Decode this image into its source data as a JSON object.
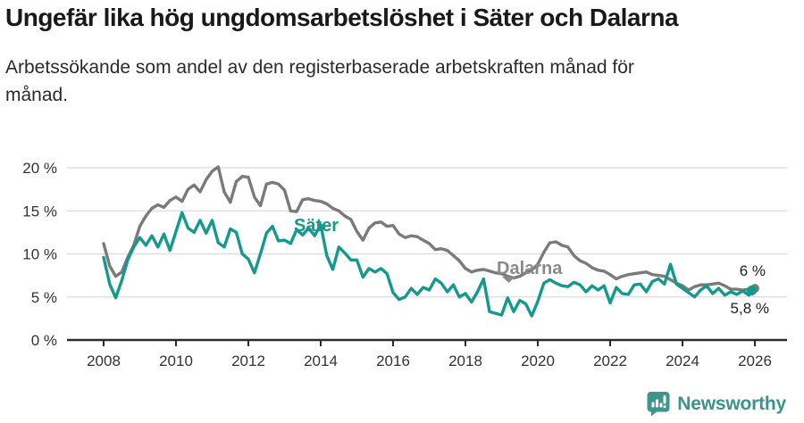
{
  "header": {
    "title": "Ungefär lika hög ungdomsarbetslöshet i Säter och Dalarna",
    "subtitle_line1": "Arbetssökande som andel av den registerbaserade arbetskraften månad för",
    "subtitle_line2": "månad."
  },
  "footer": {
    "brand": "Newsworthy"
  },
  "colors": {
    "sater_line": "#149a8d",
    "dalarna_line": "#7a7a7a",
    "dalarna_label": "#8a8a8a",
    "axis": "#2b2b2b",
    "gridline": "#dbdbdb",
    "brand_teal": "#3f948c"
  },
  "chart_data": {
    "type": "line",
    "title": "Ungefär lika hög ungdomsarbetslöshet i Säter och Dalarna",
    "subtitle": "Arbetssökande som andel av den registerbaserade arbetskraften månad för månad.",
    "unit": "%",
    "x_start": 2008,
    "x_step_months": 2,
    "xlim": [
      2008,
      2026.2
    ],
    "ylim": [
      0,
      21
    ],
    "grid": "horizontal",
    "x_ticks": [
      "2008",
      "2010",
      "2012",
      "2014",
      "2016",
      "2018",
      "2020",
      "2022",
      "2024",
      "2026"
    ],
    "y_ticks": [
      {
        "value": 0,
        "label": "0 %"
      },
      {
        "value": 5,
        "label": "5 %"
      },
      {
        "value": 10,
        "label": "10 %"
      },
      {
        "value": 15,
        "label": "15 %"
      },
      {
        "value": 20,
        "label": "20 %"
      }
    ],
    "series": [
      {
        "name": "Dalarna",
        "end_label": "6 %",
        "end_value": 6.0,
        "values": [
          11.2,
          8.6,
          7.4,
          7.9,
          9.6,
          11.0,
          13.2,
          14.4,
          15.3,
          15.7,
          15.4,
          16.2,
          16.6,
          16.1,
          17.5,
          18.0,
          17.2,
          18.6,
          19.6,
          20.1,
          17.2,
          16.0,
          18.4,
          19.0,
          18.9,
          16.6,
          15.6,
          18.1,
          18.3,
          18.1,
          17.4,
          15.0,
          14.9,
          16.3,
          16.4,
          16.2,
          16.1,
          15.8,
          15.3,
          15.0,
          14.4,
          14.0,
          12.6,
          11.6,
          13.0,
          13.6,
          13.7,
          13.2,
          13.3,
          12.3,
          11.9,
          12.1,
          12.0,
          11.6,
          11.2,
          10.5,
          10.6,
          10.4,
          9.8,
          9.2,
          8.3,
          7.9,
          8.1,
          8.2,
          8.0,
          7.8,
          7.7,
          7.4,
          7.2,
          7.4,
          7.8,
          8.1,
          8.8,
          10.2,
          11.3,
          11.4,
          11.0,
          10.8,
          9.8,
          9.2,
          8.9,
          8.4,
          8.1,
          8.0,
          7.6,
          7.1,
          7.4,
          7.6,
          7.7,
          7.8,
          7.9,
          7.6,
          7.5,
          7.4,
          7.0,
          6.6,
          6.3,
          5.8,
          6.2,
          6.4,
          6.4,
          6.5,
          6.6,
          6.3,
          5.9,
          5.9,
          5.8,
          5.9,
          6.0
        ]
      },
      {
        "name": "Säter",
        "end_label": "5,8 %",
        "end_value": 5.8,
        "values": [
          9.6,
          6.5,
          4.9,
          6.9,
          9.3,
          10.8,
          11.9,
          11.0,
          12.1,
          10.8,
          12.3,
          10.4,
          12.6,
          14.8,
          13.0,
          12.5,
          13.9,
          12.4,
          13.9,
          11.3,
          10.8,
          12.9,
          12.5,
          10.0,
          9.4,
          7.8,
          10.0,
          12.4,
          13.2,
          11.5,
          11.6,
          11.2,
          12.8,
          12.2,
          13.0,
          12.1,
          13.4,
          9.8,
          8.2,
          10.8,
          10.1,
          9.3,
          9.3,
          7.3,
          8.3,
          7.9,
          8.3,
          7.7,
          5.5,
          4.7,
          5.0,
          6.0,
          5.3,
          6.1,
          5.8,
          7.1,
          6.6,
          5.6,
          6.4,
          5.0,
          5.4,
          4.4,
          5.6,
          7.1,
          3.3,
          3.1,
          2.9,
          4.9,
          3.3,
          4.6,
          4.2,
          2.8,
          4.5,
          6.6,
          7.0,
          6.6,
          6.3,
          6.2,
          6.7,
          6.4,
          5.6,
          6.3,
          5.8,
          6.3,
          4.3,
          6.1,
          5.4,
          5.3,
          6.4,
          6.5,
          5.6,
          6.8,
          7.1,
          6.5,
          8.8,
          6.5,
          6.0,
          5.5,
          5.0,
          5.8,
          6.3,
          5.4,
          6.0,
          5.2,
          5.6,
          5.3,
          5.7,
          5.2,
          5.8
        ]
      }
    ],
    "legend_position": "inline-labels"
  }
}
